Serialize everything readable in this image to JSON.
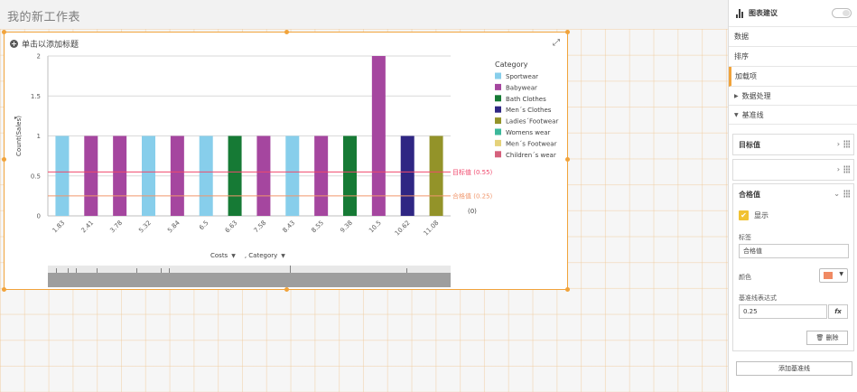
{
  "sheet": {
    "title": "我的新工作表"
  },
  "chart": {
    "title": "单击以添加标题",
    "dimensions": [
      {
        "label": "Costs"
      },
      {
        "label": ", Category"
      }
    ]
  },
  "chart_data": {
    "type": "bar",
    "ylabel": "Count(Sales)",
    "ylim": [
      0,
      2
    ],
    "yticks": [
      "0",
      "0.5",
      "1",
      "1.5",
      "2"
    ],
    "categories": [
      "1.83",
      "2.41",
      "3.78",
      "5.32",
      "5.84",
      "6.5",
      "6.63",
      "7.58",
      "8.43",
      "8.55",
      "9.38",
      "10.5",
      "10.62",
      "11.08"
    ],
    "values": [
      1,
      1,
      1,
      1,
      1,
      1,
      1,
      1,
      1,
      1,
      1,
      2,
      1,
      1
    ],
    "bar_category": [
      "Sportwear",
      "Babywear",
      "Babywear",
      "Sportwear",
      "Babywear",
      "Sportwear",
      "Bath Clothes",
      "Babywear",
      "Sportwear",
      "Babywear",
      "Bath Clothes",
      "Babywear",
      "Men´s Clothes",
      "Ladies´Footwear"
    ],
    "legend": {
      "title": "Category",
      "placement": "right",
      "items": [
        {
          "label": "Sportwear",
          "color": "#87ceeb"
        },
        {
          "label": "Babywear",
          "color": "#a5469f"
        },
        {
          "label": "Bath Clothes",
          "color": "#167a35"
        },
        {
          "label": "Men´s Clothes",
          "color": "#2f2683"
        },
        {
          "label": "Ladies´Footwear",
          "color": "#939329"
        },
        {
          "label": "Womens wear",
          "color": "#3cb89b"
        },
        {
          "label": "Men´s Footwear",
          "color": "#e5d27a"
        },
        {
          "label": "Children´s wear",
          "color": "#d5617c"
        }
      ]
    },
    "reference_lines": [
      {
        "label": "目标值 (0.55)",
        "value": 0.55,
        "color": "#f0496d"
      },
      {
        "label": "合格值 (0.25)",
        "value": 0.25,
        "color": "#f0966b"
      }
    ],
    "extra_label": "(0)",
    "grid": true
  },
  "panel": {
    "title": "图表建议",
    "tabs": [
      "数据",
      "排序",
      "加载项"
    ],
    "sections": [
      "数据处理",
      "基准线"
    ],
    "ref_lines": [
      {
        "title": "目标值"
      },
      {
        "title": ""
      },
      {
        "title": "合格值",
        "show_label": "显示",
        "label_caption": "标签",
        "label_value": "合格值",
        "color_caption": "颜色",
        "color_value": "#f08a63",
        "expr_caption": "基准线表达式",
        "expr_value": "0.25",
        "fx_label": "fx",
        "delete_label": "删除"
      }
    ],
    "add_button": "添加基准线"
  }
}
